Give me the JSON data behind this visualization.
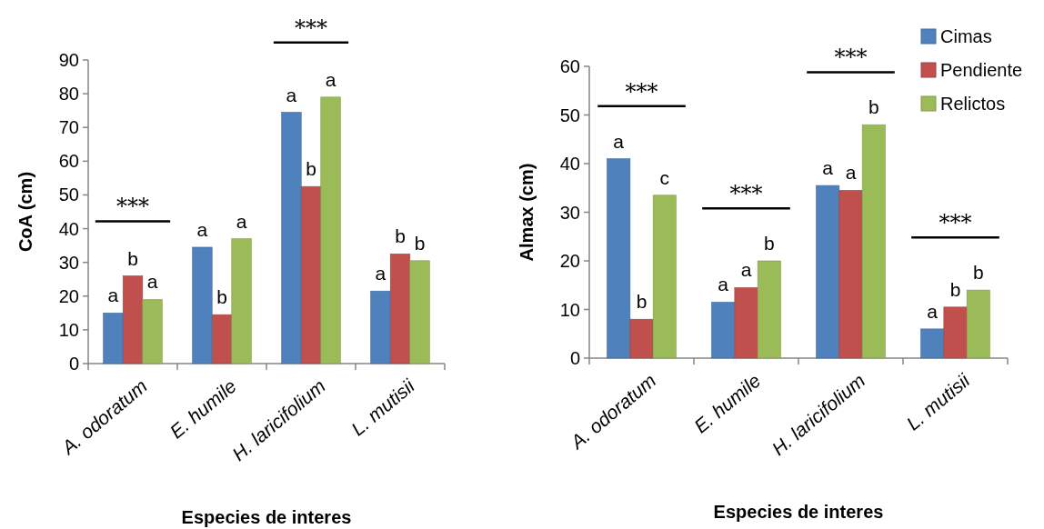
{
  "chart_data": [
    {
      "type": "bar",
      "ylabel": "CoA (cm)",
      "xlabel": "Especies de interes",
      "categories": [
        "A. odoratum",
        "E. humile",
        "H. laricifolium",
        "L. mutisii"
      ],
      "series": [
        {
          "color": "#4f81bd",
          "values": [
            15,
            34.5,
            74.5,
            21.5
          ],
          "value_labels": [
            "a",
            "a",
            "a",
            "a"
          ]
        },
        {
          "color": "#c0504d",
          "values": [
            26,
            14.5,
            52.5,
            32.5
          ],
          "value_labels": [
            "b",
            "b",
            "b",
            "b"
          ]
        },
        {
          "color": "#9bbb59",
          "values": [
            19,
            37,
            79,
            30.5
          ],
          "value_labels": [
            "a",
            "a",
            "a",
            "b"
          ]
        }
      ],
      "ylim": [
        0,
        90
      ],
      "yticks": [
        0,
        10,
        20,
        30,
        40,
        50,
        60,
        70,
        80,
        90
      ],
      "grid": false,
      "legend": false,
      "annotations": [
        {
          "text": "***",
          "x": "A. odoratum",
          "y": 26
        },
        {
          "text": "***",
          "x": "H. laricifolium",
          "y": 79
        }
      ]
    },
    {
      "type": "bar",
      "ylabel": "Almax (cm)",
      "xlabel": "Especies de interes",
      "categories": [
        "A. odoratum",
        "E. humile",
        "H. laricifolium",
        "L. mutisii"
      ],
      "series": [
        {
          "name": "Cimas",
          "color": "#4f81bd",
          "values": [
            41,
            11.5,
            35.5,
            6
          ],
          "value_labels": [
            "a",
            "a",
            "a",
            "a"
          ]
        },
        {
          "name": "Pendiente",
          "color": "#c0504d",
          "values": [
            8,
            14.5,
            34.5,
            10.5
          ],
          "value_labels": [
            "b",
            "a",
            "a",
            "b"
          ]
        },
        {
          "name": "Relictos",
          "color": "#9bbb59",
          "values": [
            33.5,
            20,
            48,
            14
          ],
          "value_labels": [
            "c",
            "b",
            "b",
            "b"
          ]
        }
      ],
      "ylim": [
        0,
        60
      ],
      "yticks": [
        0,
        10,
        20,
        30,
        40,
        50,
        60
      ],
      "grid": false,
      "legend": "top right",
      "annotations": [
        "***",
        {
          "text": "***",
          "x": "E. humile",
          "y": 20
        },
        {
          "text": "***",
          "x": "H. laricifolium",
          "y": 48
        },
        {
          "text": "***",
          "x": "L. mutisii",
          "y": 14
        }
      ]
    }
  ]
}
